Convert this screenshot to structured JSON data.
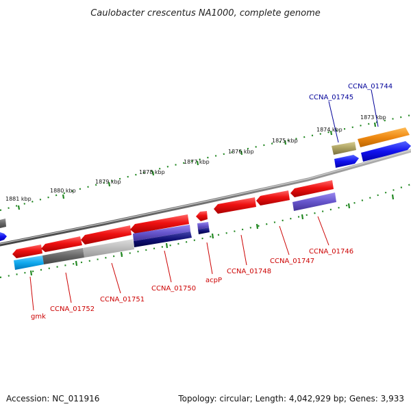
{
  "title": "Caulobacter crescentus NA1000, complete genome",
  "accession": "Accession: NC_011916",
  "topology": "Topology: circular; Length: 4,042,929 bp; Genes: 3,933",
  "kbp_labels": [
    "1881 kbp",
    "1880 kbp",
    "1879 kbp",
    "1878 kbp",
    "1877 kbp",
    "1876 kbp",
    "1875 kbp",
    "1874 kbp",
    "1873 kbp"
  ],
  "gene_labels_outer": [
    "CCNA_01745",
    "CCNA_01744"
  ],
  "gene_labels_inner": [
    "gmk",
    "CCNA_01752",
    "CCNA_01751",
    "CCNA_01750",
    "acpP",
    "CCNA_01748",
    "CCNA_01747",
    "CCNA_01746"
  ],
  "colors": {
    "forward_gene": "#ee1111",
    "cds_blue": "#1111ee",
    "cds_purple": "#6655cc",
    "cds_navy": "#111177",
    "cds_grey": "#666666",
    "cds_lightgrey": "#bbbbbb",
    "cds_cyan": "#11aaee",
    "cds_orange": "#ee8811",
    "cds_khaki": "#aaa060",
    "tick": "#228822",
    "outer_label": "#000099",
    "inner_label": "#cc0000"
  }
}
